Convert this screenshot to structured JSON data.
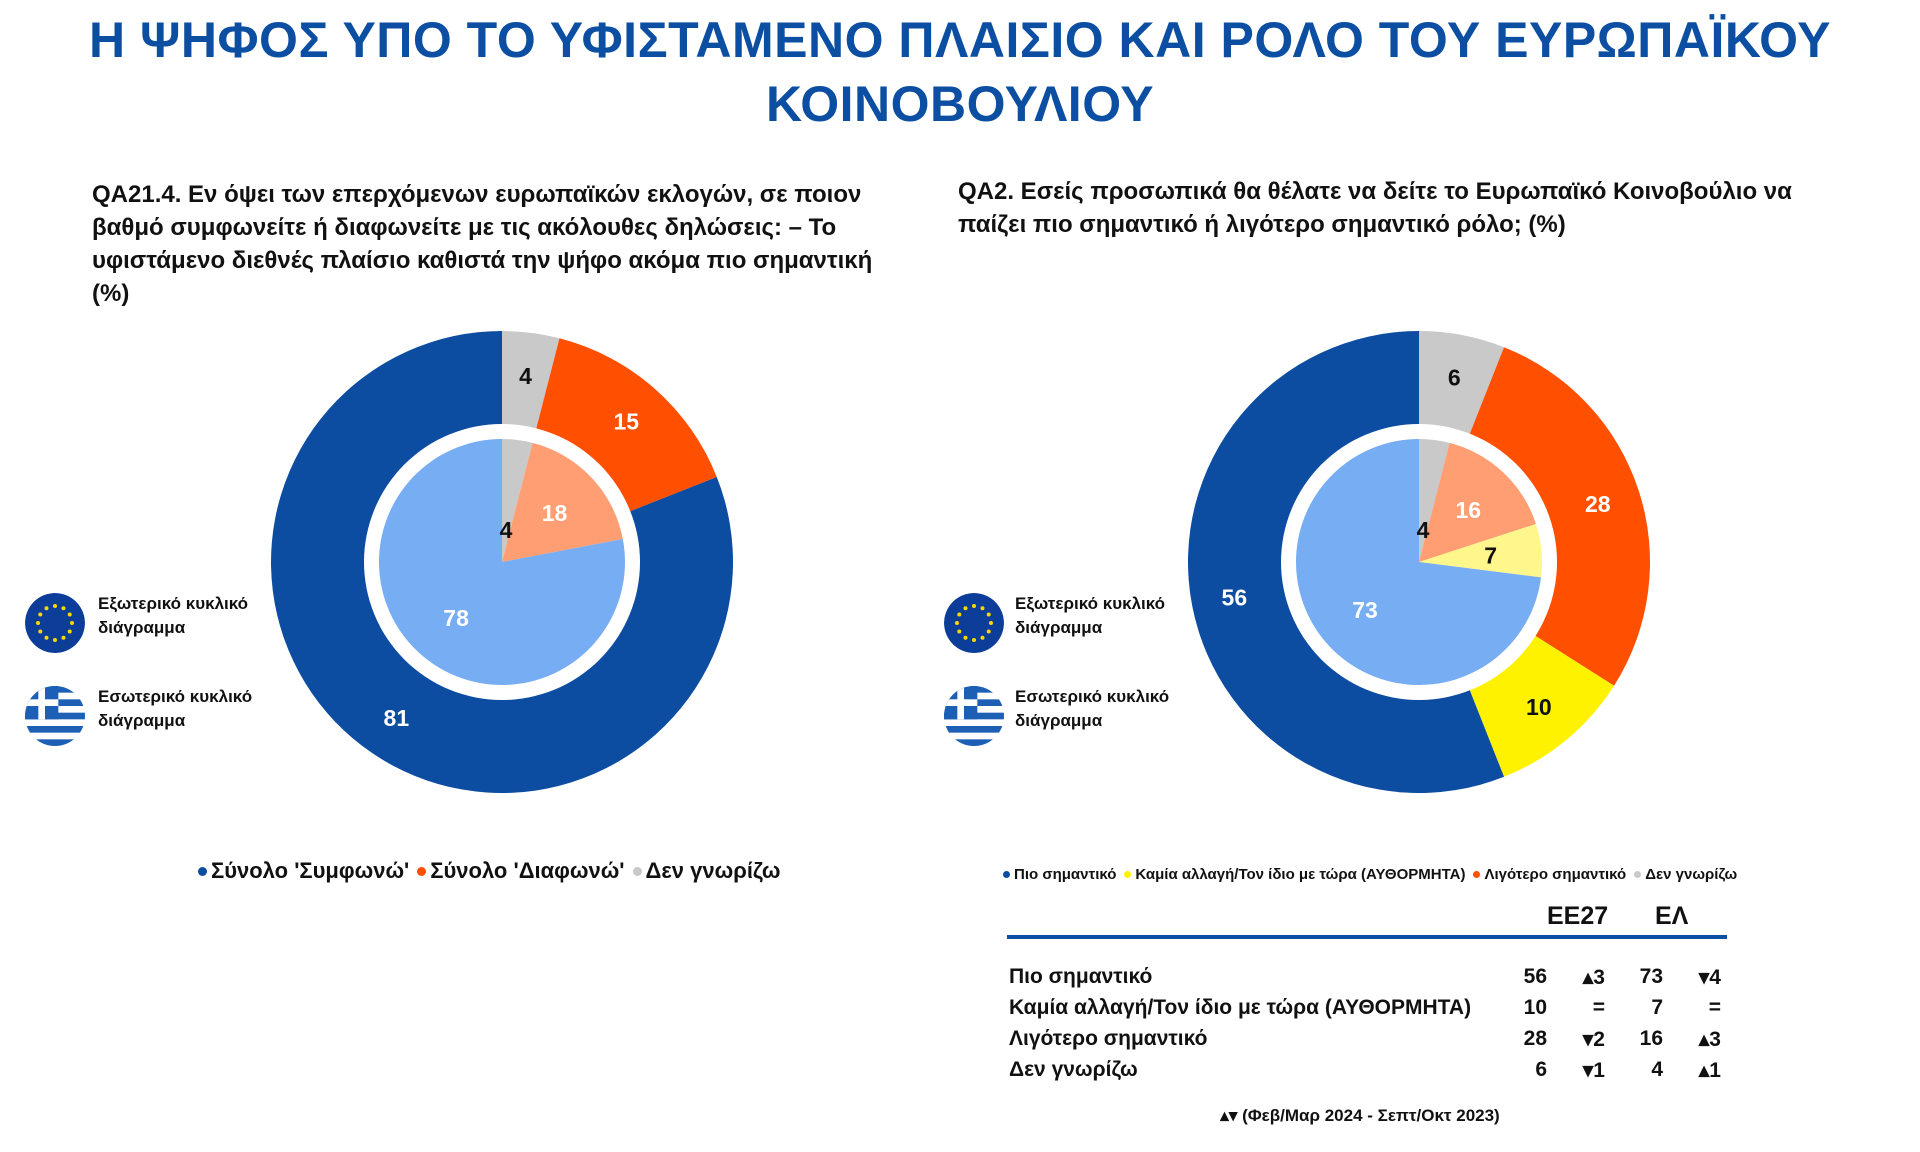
{
  "title": "Η ΨΗΦΟΣ ΥΠΟ ΤΟ ΥΦΙΣΤΑΜΕΝΟ ΠΛΑΙΣΙΟ ΚΑΙ ΡΟΛΟ ΤΟΥ ΕΥΡΩΠΑΪΚΟΥ ΚΟΙΝΟΒΟΥΛΙΟΥ",
  "legend_icons": {
    "outer_label": "Εξωτερικό κυκλικό διάγραμμα",
    "inner_label": "Εσωτερικό κυκλικό διάγραμμα",
    "outer_icon": "eu-flag-icon",
    "inner_icon": "greek-flag-icon"
  },
  "colors": {
    "title": "#0b4ea2",
    "dark_blue": "#0c4ca1",
    "light_blue": "#76adf3",
    "orange": "#ff4f00",
    "light_orange": "#ff9e72",
    "gray": "#c9c9c9",
    "yellow": "#fff200",
    "light_yellow": "#fff68c"
  },
  "chart_data": [
    {
      "type": "pie",
      "variant": "nested-donut",
      "title": "QA21.4. Εν όψει των επερχόμενων ευρωπαϊκών εκλογών, σε ποιον βαθμό συμφωνείτε ή διαφωνείτε με τις ακόλουθες δηλώσεις: – Το υφιστάμενο διεθνές πλαίσιο καθιστά την ψήφο ακόμα πιο σημαντική (%)",
      "categories": [
        "Σύνολο 'Συμφωνώ'",
        "Σύνολο 'Διαφωνώ'",
        "Δεν γνωρίζω"
      ],
      "series": [
        {
          "name": "Εξωτερικό κυκλικό διάγραμμα",
          "ring": "outer",
          "values": [
            81,
            15,
            4
          ]
        },
        {
          "name": "Εσωτερικό κυκλικό διάγραμμα",
          "ring": "inner",
          "values": [
            78,
            18,
            4
          ]
        }
      ],
      "legend_position": "bottom"
    },
    {
      "type": "pie",
      "variant": "nested-donut",
      "title": "QA2. Εσείς προσωπικά θα θέλατε να δείτε το Ευρωπαϊκό Κοινοβούλιο να παίζει πιο σημαντικό ή λιγότερο σημαντικό ρόλο; (%)",
      "categories": [
        "Πιο σημαντικό",
        "Καμία αλλαγή/Τον ίδιο με τώρα (ΑΥΘΟΡΜΗΤΑ)",
        "Λιγότερο σημαντικό",
        "Δεν γνωρίζω"
      ],
      "series": [
        {
          "name": "Εξωτερικό κυκλικό διάγραμμα",
          "ring": "outer",
          "values": [
            56,
            10,
            28,
            6
          ]
        },
        {
          "name": "Εσωτερικό κυκλικό διάγραμμα",
          "ring": "inner",
          "values": [
            73,
            7,
            16,
            4
          ]
        }
      ],
      "legend_position": "bottom"
    }
  ],
  "table": {
    "headers": [
      "ΕΕ27",
      "ΕΛ"
    ],
    "rows": [
      {
        "label": "Πιο σημαντικό",
        "eu": "56",
        "eu_change": "▴3",
        "el": "73",
        "el_change": "▾4"
      },
      {
        "label": "Καμία αλλαγή/Τον ίδιο με τώρα (ΑΥΘΟΡΜΗΤΑ)",
        "eu": "10",
        "eu_change": "=",
        "el": "7",
        "el_change": "="
      },
      {
        "label": "Λιγότερο σημαντικό",
        "eu": "28",
        "eu_change": "▾2",
        "el": "16",
        "el_change": "▴3"
      },
      {
        "label": "Δεν γνωρίζω",
        "eu": "6",
        "eu_change": "▾1",
        "el": "4",
        "el_change": "▴1"
      }
    ],
    "footnote": "▴▾ (Φεβ/Μαρ 2024 - Σεπτ/Οκτ 2023)"
  }
}
